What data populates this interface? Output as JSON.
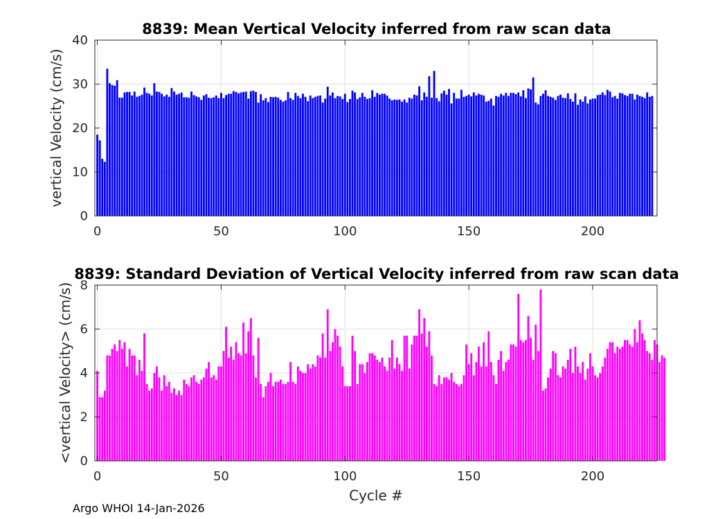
{
  "footer": "Argo WHOI 14-Jan-2026",
  "chart_data": [
    {
      "type": "bar",
      "title": "8839: Mean Vertical Velocity inferred from raw scan data",
      "xlabel": "",
      "ylabel": "vertical Velocity (cm/s)",
      "xlim": [
        -1,
        226
      ],
      "ylim": [
        0,
        40
      ],
      "xticks": [
        0,
        50,
        100,
        150,
        200
      ],
      "yticks": [
        0,
        10,
        20,
        30,
        40
      ],
      "grid": true,
      "color": "#0000ff",
      "x_start": 0,
      "values": [
        18.5,
        17.2,
        13.0,
        12.3,
        33.5,
        30.2,
        29.8,
        29.6,
        30.9,
        26.9,
        26.9,
        28.1,
        28.2,
        28.2,
        27.4,
        28.3,
        27.1,
        27.3,
        27.6,
        29.2,
        28.0,
        27.8,
        27.4,
        30.2,
        28.3,
        28.2,
        27.8,
        27.2,
        27.6,
        27.1,
        29.1,
        28.3,
        27.6,
        27.8,
        28.1,
        27.0,
        27.0,
        26.9,
        28.3,
        27.5,
        27.2,
        27.0,
        26.4,
        27.4,
        27.7,
        26.9,
        26.8,
        27.0,
        27.4,
        26.8,
        28.0,
        26.8,
        27.5,
        27.8,
        27.8,
        28.4,
        28.2,
        27.9,
        28.1,
        28.2,
        28.3,
        26.7,
        28.4,
        28.5,
        28.2,
        25.8,
        27.7,
        26.3,
        26.8,
        25.9,
        27.1,
        27.0,
        27.1,
        26.9,
        26.4,
        26.0,
        26.3,
        28.2,
        26.8,
        26.4,
        28.0,
        27.3,
        26.8,
        27.8,
        27.1,
        26.1,
        27.4,
        26.8,
        27.1,
        27.3,
        27.4,
        25.8,
        26.7,
        29.4,
        27.4,
        28.1,
        26.8,
        27.3,
        27.2,
        26.6,
        27.8,
        25.9,
        26.6,
        28.5,
        28.1,
        26.6,
        27.0,
        28.0,
        27.1,
        26.6,
        26.8,
        28.6,
        27.1,
        28.0,
        27.6,
        27.8,
        27.8,
        27.4,
        26.7,
        26.3,
        26.5,
        26.4,
        26.5,
        26.0,
        26.5,
        25.8,
        26.9,
        26.7,
        27.6,
        27.4,
        29.5,
        26.3,
        28.1,
        27.1,
        31.8,
        26.9,
        33.0,
        26.8,
        26.1,
        27.9,
        28.5,
        27.6,
        28.9,
        25.6,
        28.0,
        26.7,
        26.7,
        28.7,
        27.1,
        27.3,
        27.6,
        27.2,
        28.1,
        27.4,
        27.8,
        27.6,
        27.4,
        26.0,
        26.2,
        26.7,
        25.1,
        27.3,
        27.1,
        27.8,
        27.4,
        28.0,
        27.3,
        28.0,
        28.0,
        27.7,
        28.1,
        27.2,
        28.6,
        26.8,
        29.0,
        28.8,
        31.5,
        25.8,
        25.4,
        27.3,
        27.8,
        28.6,
        27.3,
        27.1,
        26.9,
        26.4,
        27.3,
        27.6,
        26.9,
        26.8,
        27.9,
        26.6,
        26.0,
        27.9,
        25.3,
        26.5,
        26.0,
        27.2,
        25.6,
        26.5,
        26.7,
        26.7,
        27.5,
        27.6,
        28.1,
        27.5,
        28.7,
        28.3,
        27.0,
        27.3,
        26.7,
        28.0,
        27.9,
        27.5,
        27.3,
        27.8,
        27.8,
        26.5,
        27.6,
        27.3,
        27.1,
        26.8,
        28.1,
        27.1,
        27.3
      ]
    },
    {
      "type": "bar",
      "title": "8839: Standard Deviation of Vertical Velocity inferred from raw scan data",
      "xlabel": "Cycle #",
      "ylabel": "<vertical Velocity> (cm/s)",
      "xlim": [
        -1,
        226
      ],
      "ylim": [
        0,
        8
      ],
      "xticks": [
        0,
        50,
        100,
        150,
        200
      ],
      "yticks": [
        0,
        2,
        4,
        6,
        8
      ],
      "grid": true,
      "color": "#ff00ff",
      "x_start": 0,
      "values": [
        4.1,
        2.9,
        2.9,
        3.2,
        4.8,
        4.8,
        5.1,
        5.3,
        5.0,
        5.5,
        5.1,
        5.4,
        4.3,
        5.1,
        4.8,
        4.8,
        3.9,
        4.6,
        4.1,
        5.8,
        3.5,
        3.2,
        3.3,
        4.0,
        4.3,
        3.8,
        3.2,
        3.9,
        3.4,
        3.6,
        3.1,
        3.3,
        3.0,
        3.2,
        3.0,
        3.7,
        3.5,
        3.4,
        3.8,
        3.9,
        3.6,
        3.5,
        3.7,
        3.8,
        4.2,
        4.5,
        3.8,
        3.9,
        3.7,
        4.3,
        4.3,
        5.0,
        6.1,
        4.7,
        5.2,
        4.6,
        5.4,
        4.9,
        4.8,
        6.3,
        4.9,
        5.9,
        6.5,
        4.8,
        3.8,
        5.6,
        3.5,
        2.9,
        3.4,
        3.6,
        4.0,
        3.4,
        3.6,
        3.6,
        3.7,
        3.5,
        3.5,
        3.6,
        4.5,
        3.6,
        3.5,
        4.3,
        4.1,
        4.0,
        4.0,
        4.4,
        4.2,
        4.4,
        4.3,
        4.8,
        4.7,
        5.8,
        4.7,
        6.9,
        5.0,
        5.4,
        6.0,
        5.7,
        5.2,
        4.3,
        3.4,
        3.4,
        3.4,
        5.7,
        5.0,
        3.5,
        4.4,
        4.4,
        4.0,
        4.5,
        4.9,
        4.9,
        4.8,
        4.6,
        4.5,
        4.7,
        4.3,
        4.1,
        4.7,
        5.5,
        4.2,
        4.7,
        4.4,
        4.1,
        5.7,
        5.7,
        4.2,
        5.3,
        5.7,
        5.7,
        6.9,
        5.8,
        6.5,
        5.2,
        5.9,
        4.8,
        3.5,
        3.4,
        3.9,
        3.5,
        3.8,
        3.8,
        3.7,
        4.0,
        3.6,
        3.5,
        3.4,
        3.5,
        3.9,
        5.3,
        4.4,
        4.9,
        3.9,
        4.5,
        5.2,
        4.3,
        5.4,
        4.3,
        5.9,
        4.5,
        3.9,
        3.5,
        4.6,
        5.0,
        4.1,
        4.5,
        4.6,
        5.3,
        5.3,
        5.2,
        7.6,
        5.5,
        5.4,
        5.5,
        6.6,
        5.6,
        4.6,
        6.2,
        5.0,
        7.8,
        3.2,
        3.3,
        3.8,
        4.2,
        5.0,
        4.9,
        3.9,
        3.8,
        4.3,
        4.2,
        4.6,
        5.1,
        4.0,
        5.2,
        4.3,
        4.0,
        4.5,
        3.7,
        4.2,
        4.9,
        4.3,
        3.9,
        3.8,
        4.0,
        4.3,
        4.7,
        5.1,
        5.4,
        5.4,
        4.9,
        5.2,
        5.1,
        5.2,
        5.5,
        5.5,
        5.3,
        5.2,
        6.0,
        5.4,
        6.4,
        5.8,
        5.5,
        5.0,
        4.9,
        4.6,
        5.5,
        5.3,
        4.5,
        4.8,
        4.7
      ]
    }
  ]
}
